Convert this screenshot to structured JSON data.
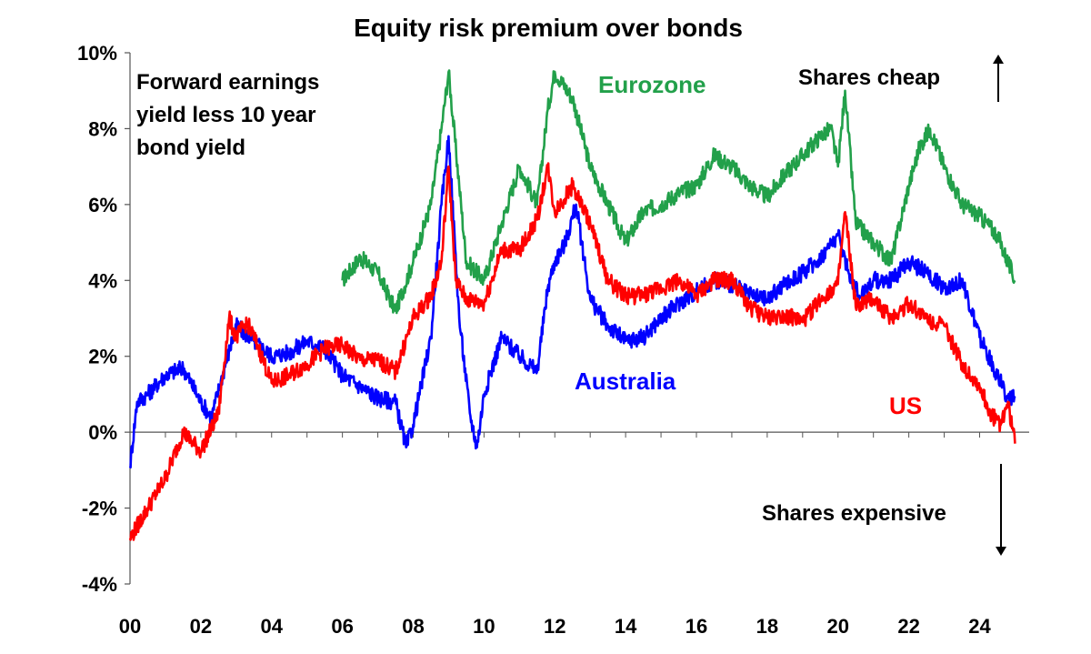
{
  "chart_data": {
    "type": "line",
    "title": "Equity risk premium over bonds",
    "xlabel": "",
    "ylabel": "",
    "ylim": [
      -4,
      10
    ],
    "y_ticks": [
      "-4%",
      "-2%",
      "0%",
      "2%",
      "4%",
      "6%",
      "8%",
      "10%"
    ],
    "x_ticks": [
      "00",
      "02",
      "04",
      "06",
      "08",
      "10",
      "12",
      "14",
      "16",
      "18",
      "20",
      "22",
      "24"
    ],
    "grid": false,
    "annotations": {
      "note": [
        "Forward earnings",
        "yield less 10 year",
        "bond yield"
      ],
      "shares_cheap": "Shares cheap",
      "shares_expensive": "Shares expensive"
    },
    "series": [
      {
        "name": "Eurozone",
        "color": "#22a04a",
        "x": [
          2006.0,
          2006.5,
          2007.0,
          2007.5,
          2008.0,
          2008.5,
          2008.8,
          2009.0,
          2009.3,
          2009.5,
          2010.0,
          2010.5,
          2011.0,
          2011.5,
          2011.8,
          2012.0,
          2012.5,
          2013.0,
          2013.5,
          2014.0,
          2014.5,
          2015.0,
          2015.5,
          2016.0,
          2016.5,
          2017.0,
          2017.5,
          2018.0,
          2018.5,
          2019.0,
          2019.5,
          2019.8,
          2020.0,
          2020.2,
          2020.5,
          2021.0,
          2021.5,
          2022.0,
          2022.3,
          2022.6,
          2023.0,
          2023.5,
          2024.0,
          2024.5,
          2025.0
        ],
        "values": [
          4.0,
          4.6,
          4.2,
          3.2,
          4.5,
          6.0,
          8.0,
          9.5,
          6.5,
          4.5,
          4.0,
          5.5,
          7.0,
          6.0,
          8.5,
          9.5,
          8.8,
          7.0,
          6.0,
          5.0,
          5.8,
          6.0,
          6.3,
          6.5,
          7.3,
          7.0,
          6.5,
          6.2,
          6.8,
          7.3,
          7.8,
          8.0,
          7.0,
          9.0,
          5.5,
          5.0,
          4.5,
          6.5,
          7.5,
          8.0,
          7.0,
          6.0,
          5.7,
          5.2,
          4.0
        ]
      },
      {
        "name": "Australia",
        "color": "#0000ff",
        "x": [
          2000.0,
          2000.2,
          2000.5,
          2001.0,
          2001.5,
          2002.0,
          2002.3,
          2002.7,
          2003.0,
          2003.5,
          2004.0,
          2004.5,
          2005.0,
          2005.5,
          2006.0,
          2006.5,
          2007.0,
          2007.5,
          2007.8,
          2008.0,
          2008.5,
          2008.8,
          2009.0,
          2009.3,
          2009.6,
          2009.8,
          2010.0,
          2010.5,
          2011.0,
          2011.5,
          2011.8,
          2012.0,
          2012.3,
          2012.6,
          2013.0,
          2013.5,
          2014.0,
          2014.5,
          2015.0,
          2015.5,
          2016.0,
          2016.5,
          2017.0,
          2017.5,
          2018.0,
          2018.5,
          2019.0,
          2019.5,
          2020.0,
          2020.3,
          2020.6,
          2021.0,
          2021.5,
          2022.0,
          2022.5,
          2023.0,
          2023.5,
          2024.0,
          2024.5,
          2024.8,
          2025.0
        ],
        "values": [
          -0.9,
          0.8,
          1.0,
          1.5,
          1.7,
          0.8,
          0.4,
          1.8,
          2.8,
          2.4,
          2.0,
          2.1,
          2.4,
          2.2,
          1.5,
          1.2,
          0.9,
          0.8,
          -0.4,
          0.2,
          2.5,
          6.0,
          7.8,
          3.0,
          0.5,
          -0.4,
          1.0,
          2.5,
          2.0,
          1.6,
          3.8,
          4.5,
          5.0,
          6.0,
          3.5,
          2.8,
          2.4,
          2.5,
          3.0,
          3.4,
          3.7,
          4.0,
          3.9,
          3.6,
          3.5,
          3.9,
          4.2,
          4.6,
          5.2,
          4.2,
          3.6,
          4.0,
          4.0,
          4.5,
          4.2,
          3.8,
          4.0,
          2.5,
          1.5,
          0.9,
          0.9
        ]
      },
      {
        "name": "US",
        "color": "#ff0000",
        "x": [
          2000.0,
          2000.5,
          2001.0,
          2001.5,
          2002.0,
          2002.5,
          2002.8,
          2003.0,
          2003.3,
          2003.6,
          2004.0,
          2004.5,
          2005.0,
          2005.5,
          2006.0,
          2006.5,
          2007.0,
          2007.5,
          2008.0,
          2008.5,
          2008.8,
          2009.0,
          2009.2,
          2009.5,
          2010.0,
          2010.5,
          2011.0,
          2011.5,
          2011.8,
          2012.0,
          2012.5,
          2013.0,
          2013.5,
          2014.0,
          2014.5,
          2015.0,
          2015.5,
          2016.0,
          2016.5,
          2017.0,
          2017.5,
          2018.0,
          2018.5,
          2019.0,
          2019.5,
          2020.0,
          2020.2,
          2020.5,
          2021.0,
          2021.5,
          2022.0,
          2022.5,
          2023.0,
          2023.5,
          2024.0,
          2024.3,
          2024.6,
          2024.8,
          2025.0
        ],
        "values": [
          -2.8,
          -2.0,
          -1.2,
          0.0,
          -0.5,
          0.5,
          3.0,
          2.5,
          2.9,
          2.3,
          1.3,
          1.5,
          1.8,
          2.2,
          2.3,
          1.9,
          1.9,
          1.6,
          3.0,
          3.6,
          4.5,
          7.0,
          4.0,
          3.5,
          3.4,
          4.8,
          4.8,
          5.6,
          7.0,
          5.8,
          6.5,
          5.5,
          4.0,
          3.6,
          3.6,
          3.8,
          4.0,
          3.6,
          4.0,
          4.0,
          3.3,
          3.0,
          3.1,
          2.9,
          3.5,
          3.9,
          5.8,
          3.3,
          3.5,
          3.0,
          3.4,
          3.0,
          2.8,
          1.8,
          1.2,
          0.5,
          0.2,
          0.8,
          -0.3
        ]
      }
    ]
  }
}
